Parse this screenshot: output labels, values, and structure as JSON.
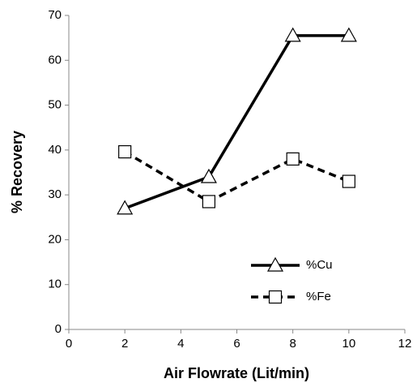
{
  "chart_data": {
    "type": "line",
    "x_label": "Air Flowrate (Lit/min)",
    "y_label": "% Recovery",
    "x": [
      2,
      5,
      8,
      10
    ],
    "series": [
      {
        "name": "%Cu",
        "color": "#000000",
        "line_style": "solid",
        "marker": "triangle",
        "values": [
          27,
          34,
          65.5,
          65.5
        ]
      },
      {
        "name": "%Fe",
        "color": "#000000",
        "line_style": "dashed",
        "marker": "square",
        "values": [
          39.6,
          28.5,
          38,
          33
        ]
      }
    ],
    "xlim": [
      0,
      12
    ],
    "xticks": [
      0,
      2,
      4,
      6,
      8,
      10,
      12
    ],
    "ylim": [
      0,
      70
    ],
    "yticks": [
      0,
      10,
      20,
      30,
      40,
      50,
      60,
      70
    ],
    "grid": false,
    "legend": "lower-right"
  }
}
